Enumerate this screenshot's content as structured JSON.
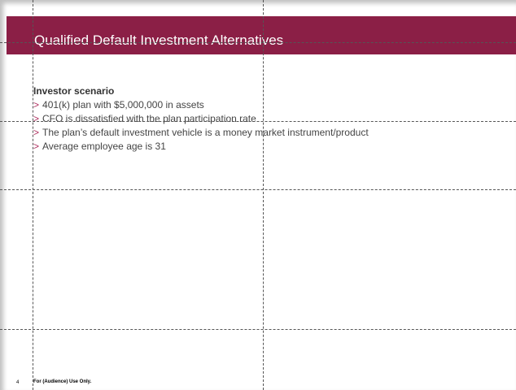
{
  "header": {
    "title": "Qualified Default Investment Alternatives"
  },
  "content": {
    "heading": "Investor scenario",
    "bullets": [
      "401(k) plan with $5,000,000 in assets",
      "CFO is dissatisfied with the plan participation rate",
      "The plan’s default investment vehicle is a money market instrument/product",
      "Average employee age is 31"
    ],
    "marker": ">"
  },
  "footer": {
    "page": "4",
    "note": "For (Audience)  Use Only."
  }
}
